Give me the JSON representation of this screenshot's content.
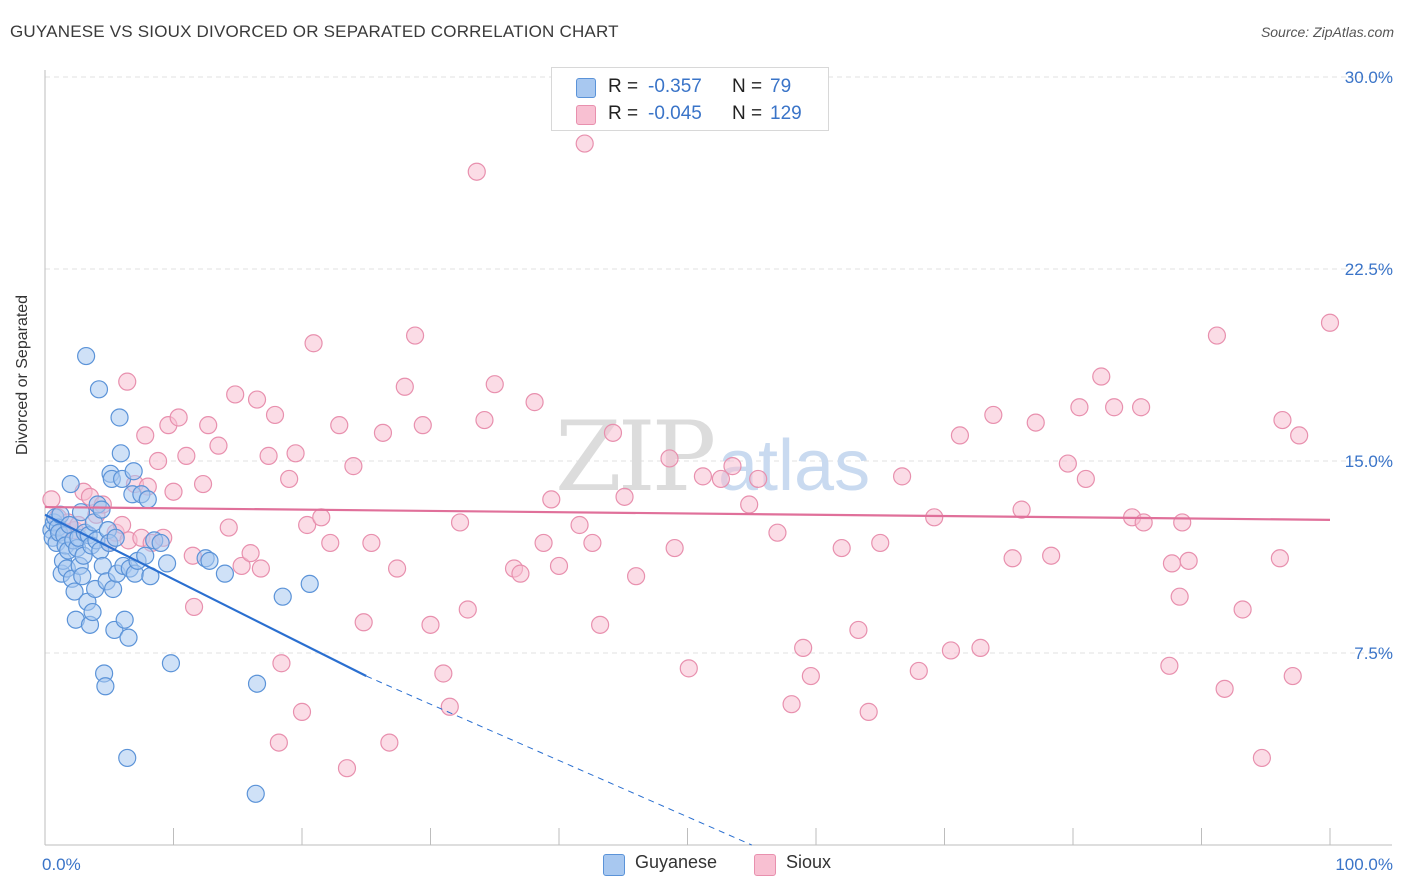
{
  "title": "GUYANESE VS SIOUX DIVORCED OR SEPARATED CORRELATION CHART",
  "source": "Source: ZipAtlas.com",
  "watermark": {
    "zip": "ZIP",
    "atlas": "atlas"
  },
  "colors": {
    "guyanese_fill": "#a8c8f0",
    "guyanese_stroke": "#5b93d8",
    "guyanese_line": "#2a6fd0",
    "sioux_fill": "#f8c0d2",
    "sioux_stroke": "#e890ae",
    "sioux_line": "#e0709a",
    "axis_text": "#3a74c8"
  },
  "legend": {
    "guyanese": {
      "r_label": "R =",
      "r_value": "-0.357",
      "n_label": "N =",
      "n_value": "79"
    },
    "sioux": {
      "r_label": "R =",
      "r_value": "-0.045",
      "n_label": "N =",
      "n_value": "129"
    }
  },
  "chart_data": {
    "type": "scatter",
    "title": "GUYANESE VS SIOUX DIVORCED OR SEPARATED CORRELATION CHART",
    "xlabel": "",
    "ylabel": "Divorced or Separated",
    "xlim": [
      0,
      100
    ],
    "ylim": [
      0,
      31
    ],
    "x_tick_labels": [
      "0.0%",
      "100.0%"
    ],
    "y_ticks": [
      7.5,
      15.0,
      22.5,
      30.0
    ],
    "y_tick_labels": [
      "7.5%",
      "15.0%",
      "22.5%",
      "30.0%"
    ],
    "grid": true,
    "legend_position": "top-center",
    "series": [
      {
        "name": "Guyanese",
        "regression": {
          "x0": 0,
          "y0": 12.9,
          "x1": 25,
          "y1": 6.6,
          "dash_x1": 55,
          "dash_y1": -1.0
        },
        "points": [
          [
            0.5,
            12.3
          ],
          [
            0.6,
            12.0
          ],
          [
            0.7,
            12.6
          ],
          [
            0.8,
            12.8
          ],
          [
            0.9,
            11.8
          ],
          [
            1.0,
            12.4
          ],
          [
            1.1,
            12.2
          ],
          [
            1.2,
            12.9
          ],
          [
            1.3,
            10.6
          ],
          [
            1.4,
            11.1
          ],
          [
            1.5,
            12.1
          ],
          [
            1.6,
            11.7
          ],
          [
            1.7,
            10.8
          ],
          [
            1.8,
            11.5
          ],
          [
            1.9,
            12.5
          ],
          [
            2.0,
            14.1
          ],
          [
            2.1,
            10.4
          ],
          [
            2.2,
            11.9
          ],
          [
            2.3,
            9.9
          ],
          [
            2.4,
            8.8
          ],
          [
            2.5,
            11.6
          ],
          [
            2.6,
            12.0
          ],
          [
            2.7,
            10.9
          ],
          [
            2.8,
            13.0
          ],
          [
            2.9,
            10.5
          ],
          [
            3.0,
            11.3
          ],
          [
            3.1,
            12.2
          ],
          [
            3.2,
            19.1
          ],
          [
            3.3,
            9.5
          ],
          [
            3.4,
            12.1
          ],
          [
            3.5,
            8.6
          ],
          [
            3.6,
            11.7
          ],
          [
            3.7,
            9.1
          ],
          [
            3.8,
            12.6
          ],
          [
            3.9,
            10.0
          ],
          [
            4.0,
            11.9
          ],
          [
            4.1,
            13.3
          ],
          [
            4.2,
            17.8
          ],
          [
            4.3,
            11.5
          ],
          [
            4.4,
            13.1
          ],
          [
            4.5,
            10.9
          ],
          [
            4.6,
            6.7
          ],
          [
            4.7,
            6.2
          ],
          [
            4.8,
            10.3
          ],
          [
            4.9,
            12.3
          ],
          [
            5.0,
            11.8
          ],
          [
            5.1,
            14.5
          ],
          [
            5.2,
            14.3
          ],
          [
            5.3,
            10.0
          ],
          [
            5.4,
            8.4
          ],
          [
            5.5,
            12.0
          ],
          [
            5.6,
            10.6
          ],
          [
            5.8,
            16.7
          ],
          [
            5.9,
            15.3
          ],
          [
            6.0,
            14.3
          ],
          [
            6.1,
            10.9
          ],
          [
            6.2,
            8.8
          ],
          [
            6.4,
            3.4
          ],
          [
            6.5,
            8.1
          ],
          [
            6.6,
            10.8
          ],
          [
            6.8,
            13.7
          ],
          [
            6.9,
            14.6
          ],
          [
            7.0,
            10.6
          ],
          [
            7.2,
            11.1
          ],
          [
            7.5,
            13.7
          ],
          [
            7.8,
            11.3
          ],
          [
            8.0,
            13.5
          ],
          [
            8.2,
            10.5
          ],
          [
            8.5,
            11.9
          ],
          [
            9.0,
            11.8
          ],
          [
            9.5,
            11.0
          ],
          [
            9.8,
            7.1
          ],
          [
            12.5,
            11.2
          ],
          [
            12.8,
            11.1
          ],
          [
            14.0,
            10.6
          ],
          [
            16.5,
            6.3
          ],
          [
            16.4,
            2.0
          ],
          [
            18.5,
            9.7
          ],
          [
            20.6,
            10.2
          ]
        ]
      },
      {
        "name": "Sioux",
        "regression": {
          "x0": 0,
          "y0": 13.2,
          "x1": 100,
          "y1": 12.7
        },
        "points": [
          [
            0.5,
            13.5
          ],
          [
            1.0,
            12.8
          ],
          [
            1.3,
            12.3
          ],
          [
            1.8,
            12.6
          ],
          [
            2.3,
            12.3
          ],
          [
            2.6,
            12.5
          ],
          [
            3.0,
            13.8
          ],
          [
            3.5,
            13.6
          ],
          [
            4.0,
            12.9
          ],
          [
            4.5,
            13.3
          ],
          [
            5.0,
            11.8
          ],
          [
            5.5,
            12.2
          ],
          [
            6.0,
            12.5
          ],
          [
            6.5,
            11.9
          ],
          [
            6.4,
            18.1
          ],
          [
            7.0,
            14.1
          ],
          [
            7.5,
            12.0
          ],
          [
            7.8,
            16.0
          ],
          [
            8.0,
            14.0
          ],
          [
            8.3,
            11.8
          ],
          [
            8.8,
            15.0
          ],
          [
            9.2,
            12.0
          ],
          [
            9.6,
            16.4
          ],
          [
            10.0,
            13.8
          ],
          [
            10.4,
            16.7
          ],
          [
            11.0,
            15.2
          ],
          [
            11.6,
            9.3
          ],
          [
            11.5,
            11.3
          ],
          [
            12.3,
            14.1
          ],
          [
            12.7,
            16.4
          ],
          [
            13.5,
            15.6
          ],
          [
            14.3,
            12.4
          ],
          [
            14.8,
            17.6
          ],
          [
            15.3,
            10.9
          ],
          [
            16.0,
            11.4
          ],
          [
            16.8,
            10.8
          ],
          [
            16.5,
            17.4
          ],
          [
            17.4,
            15.2
          ],
          [
            17.9,
            16.8
          ],
          [
            18.4,
            7.1
          ],
          [
            18.2,
            4.0
          ],
          [
            19.0,
            14.3
          ],
          [
            19.5,
            15.3
          ],
          [
            20.0,
            5.2
          ],
          [
            20.4,
            12.5
          ],
          [
            20.9,
            19.6
          ],
          [
            21.5,
            12.8
          ],
          [
            22.2,
            11.8
          ],
          [
            22.9,
            16.4
          ],
          [
            23.5,
            3.0
          ],
          [
            24.0,
            14.8
          ],
          [
            24.8,
            8.7
          ],
          [
            25.4,
            11.8
          ],
          [
            26.3,
            16.1
          ],
          [
            26.8,
            4.0
          ],
          [
            27.4,
            10.8
          ],
          [
            28.0,
            17.9
          ],
          [
            28.8,
            19.9
          ],
          [
            29.4,
            16.4
          ],
          [
            30.0,
            8.6
          ],
          [
            31.0,
            6.7
          ],
          [
            31.5,
            5.4
          ],
          [
            32.3,
            12.6
          ],
          [
            32.9,
            9.2
          ],
          [
            33.6,
            26.3
          ],
          [
            34.2,
            16.6
          ],
          [
            35.0,
            18.0
          ],
          [
            36.5,
            10.8
          ],
          [
            37.0,
            10.6
          ],
          [
            38.1,
            17.3
          ],
          [
            38.8,
            11.8
          ],
          [
            39.4,
            13.5
          ],
          [
            40.0,
            10.9
          ],
          [
            41.6,
            12.5
          ],
          [
            42.0,
            27.4
          ],
          [
            42.6,
            11.8
          ],
          [
            43.2,
            8.6
          ],
          [
            44.2,
            16.1
          ],
          [
            45.1,
            13.6
          ],
          [
            46.0,
            10.5
          ],
          [
            48.6,
            15.1
          ],
          [
            49.0,
            11.6
          ],
          [
            50.1,
            6.9
          ],
          [
            51.2,
            14.4
          ],
          [
            52.6,
            14.3
          ],
          [
            53.5,
            14.8
          ],
          [
            54.8,
            13.3
          ],
          [
            55.5,
            14.3
          ],
          [
            57.0,
            12.2
          ],
          [
            58.1,
            5.5
          ],
          [
            59.0,
            7.7
          ],
          [
            59.6,
            6.6
          ],
          [
            62.0,
            11.6
          ],
          [
            63.3,
            8.4
          ],
          [
            64.1,
            5.2
          ],
          [
            65.0,
            11.8
          ],
          [
            66.7,
            14.4
          ],
          [
            68.0,
            6.8
          ],
          [
            69.2,
            12.8
          ],
          [
            70.5,
            7.6
          ],
          [
            71.2,
            16.0
          ],
          [
            72.8,
            7.7
          ],
          [
            73.8,
            16.8
          ],
          [
            75.3,
            11.2
          ],
          [
            76.0,
            13.1
          ],
          [
            77.1,
            16.5
          ],
          [
            78.3,
            11.3
          ],
          [
            79.6,
            14.9
          ],
          [
            80.5,
            17.1
          ],
          [
            81.0,
            14.3
          ],
          [
            82.2,
            18.3
          ],
          [
            83.2,
            17.1
          ],
          [
            84.6,
            12.8
          ],
          [
            85.5,
            12.6
          ],
          [
            85.3,
            17.1
          ],
          [
            87.5,
            7.0
          ],
          [
            87.7,
            11.0
          ],
          [
            88.3,
            9.7
          ],
          [
            88.5,
            12.6
          ],
          [
            89.0,
            11.1
          ],
          [
            91.2,
            19.9
          ],
          [
            91.8,
            6.1
          ],
          [
            93.2,
            9.2
          ],
          [
            94.7,
            3.4
          ],
          [
            96.1,
            11.2
          ],
          [
            96.3,
            16.6
          ],
          [
            97.1,
            6.6
          ],
          [
            97.6,
            16.0
          ],
          [
            100.0,
            20.4
          ]
        ]
      }
    ]
  },
  "bottom_legend": {
    "guyanese": "Guyanese",
    "sioux": "Sioux"
  }
}
